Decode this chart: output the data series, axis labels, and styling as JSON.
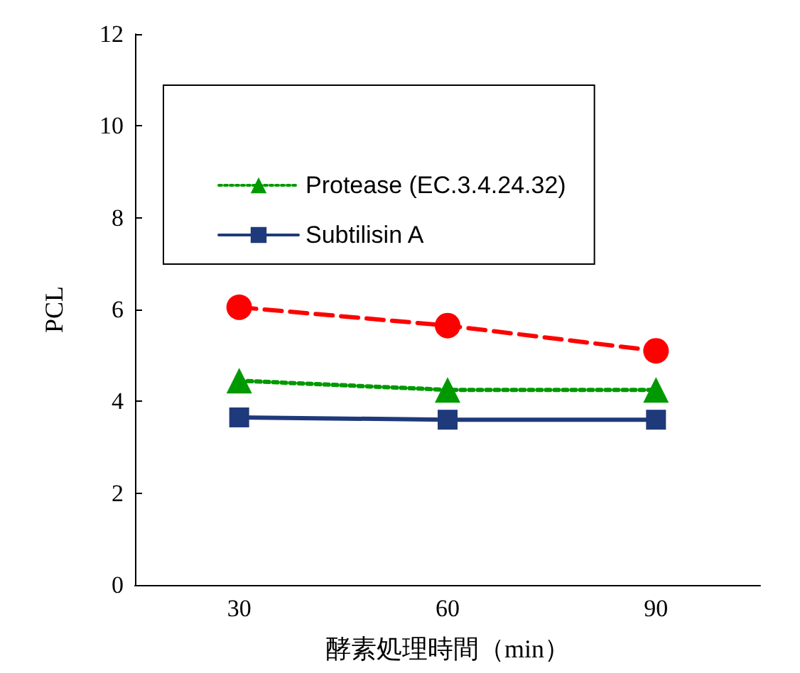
{
  "chart_data": {
    "type": "line",
    "xlabel": "酵素処理時間（min）",
    "ylabel": "PCL",
    "x": [
      30,
      60,
      90
    ],
    "xlim": [
      15,
      105
    ],
    "xticks": [
      30,
      60,
      90
    ],
    "ylim": [
      0,
      12
    ],
    "yticks": [
      0,
      2,
      4,
      6,
      8,
      10,
      12
    ],
    "grid": false,
    "legend": "top",
    "series": [
      {
        "color": "#ff0000",
        "marker": "circle",
        "line_style": "dashed",
        "values": [
          6.05,
          5.65,
          5.1
        ]
      },
      {
        "name": "Protease (EC.3.4.24.32)",
        "color": "#009900",
        "marker": "triangle",
        "line_style": "dotted",
        "values": [
          4.45,
          4.25,
          4.25
        ]
      },
      {
        "name": "Subtilisin A",
        "color": "#1f3a7a",
        "marker": "square",
        "line_style": "solid",
        "values": [
          3.65,
          3.6,
          3.6
        ]
      }
    ]
  }
}
